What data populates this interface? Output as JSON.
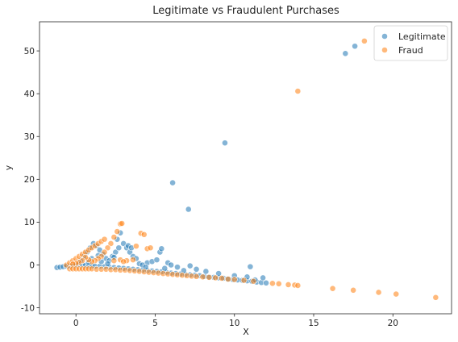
{
  "chart_data": {
    "type": "scatter",
    "title": "Legitimate vs Fraudulent Purchases",
    "xlabel": "X",
    "ylabel": "y",
    "xlim": [
      -2.3,
      23.7
    ],
    "ylim": [
      -11.4,
      56.8
    ],
    "xticks": [
      0,
      5,
      10,
      15,
      20
    ],
    "yticks": [
      -10,
      0,
      10,
      20,
      30,
      40,
      50
    ],
    "grid": false,
    "legend_position": "top-right",
    "series": [
      {
        "name": "Legitimate",
        "color": "#1f77b4",
        "points": [
          [
            -1.2,
            -0.6
          ],
          [
            -1.0,
            -0.5
          ],
          [
            -0.8,
            -0.4
          ],
          [
            -0.6,
            -0.3
          ],
          [
            -0.4,
            -0.2
          ],
          [
            -0.2,
            -0.1
          ],
          [
            0.0,
            0.0
          ],
          [
            0.2,
            0.1
          ],
          [
            0.4,
            0.0
          ],
          [
            0.6,
            -0.1
          ],
          [
            0.8,
            -0.2
          ],
          [
            1.0,
            -0.2
          ],
          [
            1.2,
            -0.3
          ],
          [
            1.5,
            -0.3
          ],
          [
            1.8,
            -0.4
          ],
          [
            2.1,
            -0.5
          ],
          [
            2.4,
            -0.6
          ],
          [
            2.7,
            -0.7
          ],
          [
            3.0,
            -0.8
          ],
          [
            3.3,
            -0.9
          ],
          [
            3.6,
            -1.0
          ],
          [
            3.9,
            -1.1
          ],
          [
            4.2,
            -1.2
          ],
          [
            4.5,
            -1.3
          ],
          [
            4.8,
            -1.4
          ],
          [
            5.1,
            -1.5
          ],
          [
            5.4,
            -1.6
          ],
          [
            5.7,
            -1.7
          ],
          [
            6.0,
            -1.9
          ],
          [
            6.3,
            -2.0
          ],
          [
            6.6,
            -2.1
          ],
          [
            6.9,
            -2.2
          ],
          [
            7.2,
            -2.3
          ],
          [
            7.5,
            -2.4
          ],
          [
            7.8,
            -2.5
          ],
          [
            8.1,
            -2.7
          ],
          [
            8.4,
            -2.8
          ],
          [
            8.7,
            -2.9
          ],
          [
            9.0,
            -3.0
          ],
          [
            9.3,
            -3.1
          ],
          [
            9.6,
            -3.3
          ],
          [
            9.9,
            -3.4
          ],
          [
            10.2,
            -3.5
          ],
          [
            10.5,
            -3.6
          ],
          [
            10.8,
            -3.7
          ],
          [
            11.1,
            -3.8
          ],
          [
            11.4,
            -4.0
          ],
          [
            11.7,
            -4.1
          ],
          [
            12.0,
            -4.2
          ],
          [
            0.3,
            1.0
          ],
          [
            0.5,
            2.0
          ],
          [
            0.7,
            3.0
          ],
          [
            0.9,
            4.0
          ],
          [
            1.1,
            5.0
          ],
          [
            1.3,
            4.5
          ],
          [
            1.5,
            3.5
          ],
          [
            1.7,
            2.5
          ],
          [
            1.9,
            1.5
          ],
          [
            2.1,
            1.0
          ],
          [
            2.3,
            2.0
          ],
          [
            2.5,
            3.0
          ],
          [
            2.7,
            4.0
          ],
          [
            2.6,
            6.0
          ],
          [
            2.8,
            7.5
          ],
          [
            3.0,
            5.0
          ],
          [
            3.2,
            4.0
          ],
          [
            3.4,
            3.0
          ],
          [
            3.6,
            2.0
          ],
          [
            3.8,
            1.5
          ],
          [
            3.3,
            4.5
          ],
          [
            3.5,
            4.0
          ],
          [
            4.5,
            0.5
          ],
          [
            4.8,
            0.8
          ],
          [
            5.1,
            1.2
          ],
          [
            5.3,
            3.0
          ],
          [
            5.4,
            3.8
          ],
          [
            5.8,
            0.5
          ],
          [
            6.0,
            0.0
          ],
          [
            6.4,
            -0.5
          ],
          [
            7.2,
            -0.2
          ],
          [
            7.6,
            -1.0
          ],
          [
            8.2,
            -1.5
          ],
          [
            9.0,
            -2.0
          ],
          [
            10.0,
            -2.5
          ],
          [
            10.8,
            -2.8
          ],
          [
            11.0,
            -0.4
          ],
          [
            11.3,
            -3.5
          ],
          [
            11.8,
            -3.0
          ],
          [
            1.0,
            1.5
          ],
          [
            1.4,
            2.2
          ],
          [
            1.6,
            0.8
          ],
          [
            2.0,
            0.3
          ],
          [
            2.4,
            1.8
          ],
          [
            0.8,
            0.6
          ],
          [
            4.0,
            0.3
          ],
          [
            4.2,
            0.0
          ],
          [
            4.4,
            -0.5
          ],
          [
            5.6,
            -0.8
          ],
          [
            6.8,
            -1.3
          ],
          [
            6.1,
            19.2
          ],
          [
            7.1,
            13.0
          ],
          [
            9.4,
            28.5
          ],
          [
            17.0,
            49.4
          ],
          [
            17.6,
            51.1
          ]
        ]
      },
      {
        "name": "Fraud",
        "color": "#ff7f0e",
        "points": [
          [
            -0.6,
            0.0
          ],
          [
            -0.4,
            0.5
          ],
          [
            -0.2,
            1.0
          ],
          [
            0.0,
            1.5
          ],
          [
            0.2,
            2.0
          ],
          [
            0.4,
            2.5
          ],
          [
            0.6,
            3.0
          ],
          [
            0.8,
            3.5
          ],
          [
            1.0,
            4.0
          ],
          [
            1.2,
            4.5
          ],
          [
            1.4,
            5.0
          ],
          [
            1.6,
            5.5
          ],
          [
            1.8,
            6.0
          ],
          [
            2.6,
            7.8
          ],
          [
            2.8,
            9.6
          ],
          [
            2.9,
            9.7
          ],
          [
            2.4,
            6.5
          ],
          [
            2.2,
            5.0
          ],
          [
            2.0,
            4.0
          ],
          [
            1.8,
            3.0
          ],
          [
            1.6,
            2.0
          ],
          [
            1.4,
            1.5
          ],
          [
            1.2,
            1.0
          ],
          [
            1.0,
            0.8
          ],
          [
            0.8,
            1.2
          ],
          [
            0.6,
            1.8
          ],
          [
            0.4,
            1.0
          ],
          [
            0.2,
            0.6
          ],
          [
            0.0,
            0.4
          ],
          [
            -0.2,
            0.2
          ],
          [
            2.4,
            1.0
          ],
          [
            2.8,
            1.2
          ],
          [
            3.2,
            1.0
          ],
          [
            3.6,
            1.2
          ],
          [
            3.8,
            4.4
          ],
          [
            4.1,
            7.4
          ],
          [
            4.3,
            7.1
          ],
          [
            4.5,
            3.8
          ],
          [
            4.7,
            4.0
          ],
          [
            3.0,
            0.8
          ],
          [
            -0.4,
            -0.9
          ],
          [
            -0.2,
            -0.9
          ],
          [
            0.0,
            -0.9
          ],
          [
            0.2,
            -0.9
          ],
          [
            0.4,
            -0.9
          ],
          [
            0.6,
            -0.9
          ],
          [
            0.8,
            -0.9
          ],
          [
            1.0,
            -0.9
          ],
          [
            1.3,
            -1.0
          ],
          [
            1.6,
            -1.0
          ],
          [
            1.9,
            -1.0
          ],
          [
            2.2,
            -1.1
          ],
          [
            2.5,
            -1.1
          ],
          [
            2.8,
            -1.2
          ],
          [
            3.1,
            -1.2
          ],
          [
            3.4,
            -1.3
          ],
          [
            3.7,
            -1.4
          ],
          [
            4.0,
            -1.5
          ],
          [
            4.3,
            -1.6
          ],
          [
            4.6,
            -1.7
          ],
          [
            4.9,
            -1.8
          ],
          [
            5.2,
            -1.9
          ],
          [
            5.5,
            -2.0
          ],
          [
            5.8,
            -2.1
          ],
          [
            6.1,
            -2.2
          ],
          [
            6.4,
            -2.3
          ],
          [
            6.7,
            -2.4
          ],
          [
            7.0,
            -2.5
          ],
          [
            7.3,
            -2.6
          ],
          [
            7.6,
            -2.7
          ],
          [
            8.0,
            -2.8
          ],
          [
            8.4,
            -2.9
          ],
          [
            8.8,
            -3.0
          ],
          [
            9.2,
            -3.1
          ],
          [
            9.6,
            -3.3
          ],
          [
            10.0,
            -3.4
          ],
          [
            10.6,
            -3.6
          ],
          [
            11.2,
            -3.8
          ],
          [
            12.4,
            -4.3
          ],
          [
            12.8,
            -4.4
          ],
          [
            13.4,
            -4.6
          ],
          [
            13.8,
            -4.7
          ],
          [
            14.0,
            -4.8
          ],
          [
            16.2,
            -5.5
          ],
          [
            17.5,
            -5.9
          ],
          [
            19.1,
            -6.4
          ],
          [
            20.2,
            -6.8
          ],
          [
            22.7,
            -7.6
          ],
          [
            14.0,
            40.6
          ],
          [
            18.2,
            52.3
          ]
        ]
      }
    ]
  }
}
